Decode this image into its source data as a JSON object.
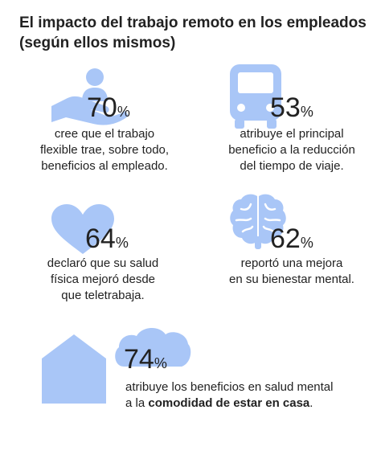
{
  "title": {
    "line1": "El impacto del trabajo remoto en los empleados",
    "line2": "(según ellos mismos)"
  },
  "colors": {
    "accent": "#a9c6f7",
    "accent_dark": "#8fb3f0",
    "text": "#222222"
  },
  "stats": [
    {
      "value": "70",
      "unit": "%",
      "icon": "hand-holding-person-icon",
      "lines": [
        "cree que el trabajo",
        "flexible trae, sobre todo,",
        "beneficios al empleado."
      ]
    },
    {
      "value": "53",
      "unit": "%",
      "icon": "bus-icon",
      "lines": [
        "atribuye el principal",
        "beneficio a la reducción",
        "del tiempo de viaje."
      ]
    },
    {
      "value": "64",
      "unit": "%",
      "icon": "heart-icon",
      "lines": [
        "declaró que su salud",
        "física mejoró desde",
        "que teletrabaja."
      ]
    },
    {
      "value": "62",
      "unit": "%",
      "icon": "brain-icon",
      "lines": [
        "reportó una mejora",
        "en su bienestar mental."
      ]
    },
    {
      "value": "74",
      "unit": "%",
      "icon": "house-cloud-icon",
      "line1": "atribuye los beneficios en salud mental",
      "line2_prefix": "a la ",
      "line2_bold": "comodidad de estar en casa",
      "line2_suffix": "."
    }
  ]
}
